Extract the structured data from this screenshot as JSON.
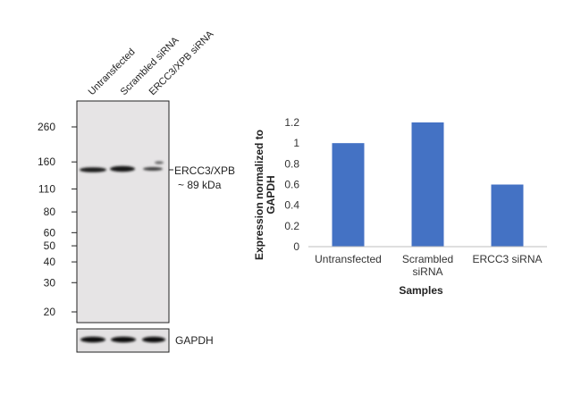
{
  "blot": {
    "lanes": [
      "Untransfected",
      "Scrambled siRNA",
      "ERCC3/XPB siRNA"
    ],
    "markers": [
      {
        "label": "260",
        "kda": 260
      },
      {
        "label": "160",
        "kda": 160
      },
      {
        "label": "110",
        "kda": 110
      },
      {
        "label": "80",
        "kda": 80
      },
      {
        "label": "60",
        "kda": 60
      },
      {
        "label": "50",
        "kda": 50
      },
      {
        "label": "40",
        "kda": 40
      },
      {
        "label": "30",
        "kda": 30
      },
      {
        "label": "20",
        "kda": 20
      }
    ],
    "target_label_line1": "ERCC3/XPB",
    "target_label_line2": "~ 89 kDa",
    "loading_control_label": "GAPDH"
  },
  "chart_data": {
    "type": "bar",
    "categories": [
      [
        "Untransfected"
      ],
      [
        "Scrambled",
        "siRNA"
      ],
      [
        "ERCC3 siRNA"
      ]
    ],
    "values": [
      1.0,
      1.2,
      0.6
    ],
    "title": "",
    "xlabel": "Samples",
    "ylabel_line1": "Expression  normalized to",
    "ylabel_line2": "GAPDH",
    "ylim": [
      0,
      1.2
    ],
    "yticks": [
      0,
      0.2,
      0.4,
      0.6,
      0.8,
      1,
      1.2
    ],
    "ytick_labels": [
      "0",
      "0.2",
      "0.4",
      "0.6",
      "0.8",
      "1",
      "1.2"
    ],
    "bar_color": "#4472C4",
    "grid": false,
    "legend": "none"
  }
}
